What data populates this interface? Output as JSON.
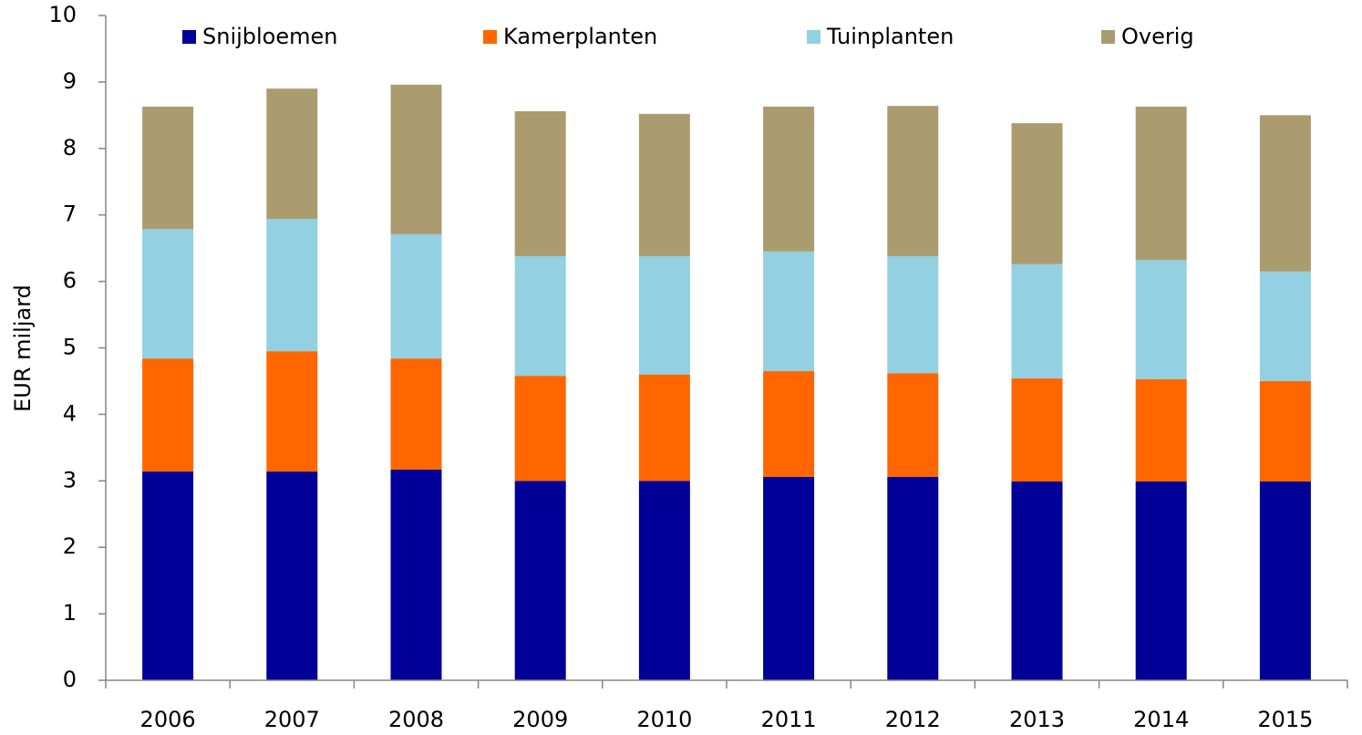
{
  "chart_data": {
    "type": "stacked_bar",
    "y_label": "EUR miljard",
    "categories": [
      "2006",
      "2007",
      "2008",
      "2009",
      "2010",
      "2011",
      "2012",
      "2013",
      "2014",
      "2015"
    ],
    "series": [
      {
        "name": "Snijbloemen",
        "color": "#000099",
        "values": [
          3.14,
          3.14,
          3.17,
          3.0,
          3.0,
          3.06,
          3.06,
          2.99,
          2.99,
          2.99
        ]
      },
      {
        "name": "Kamerplanten",
        "color": "#ff6600",
        "values": [
          1.7,
          1.81,
          1.67,
          1.58,
          1.6,
          1.59,
          1.56,
          1.55,
          1.54,
          1.51
        ]
      },
      {
        "name": "Tuinplanten",
        "color": "#92d0e2",
        "values": [
          1.95,
          1.99,
          1.87,
          1.8,
          1.78,
          1.8,
          1.76,
          1.72,
          1.79,
          1.65
        ]
      },
      {
        "name": "Overig",
        "color": "#ab9c70",
        "values": [
          1.84,
          1.96,
          2.25,
          2.18,
          2.14,
          2.18,
          2.26,
          2.12,
          2.31,
          2.35
        ]
      }
    ],
    "ylim": [
      0,
      10
    ],
    "yticks": [
      0,
      1,
      2,
      3,
      4,
      5,
      6,
      7,
      8,
      9,
      10
    ],
    "grid": false,
    "legend": "top"
  }
}
